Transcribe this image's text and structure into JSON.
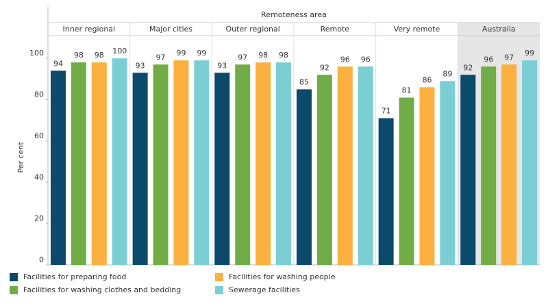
{
  "chart_data": {
    "type": "bar",
    "x_label": "Remoteness area",
    "y_label": "Per cent",
    "categories": [
      "Inner regional",
      "Major cities",
      "Outer regional",
      "Remote",
      "Very remote",
      "Australia"
    ],
    "shaded_category": "Australia",
    "shade_color": "#e6e6e6",
    "series": [
      {
        "name": "Facilities for preparing food",
        "color": "#0b4a6b",
        "values": [
          94,
          93,
          93,
          85,
          71,
          92
        ]
      },
      {
        "name": "Facilities for washing clothes and bedding",
        "color": "#70ad47",
        "values": [
          98,
          97,
          97,
          92,
          81,
          96
        ]
      },
      {
        "name": "Facilities for washing people",
        "color": "#fbb040",
        "values": [
          98,
          99,
          98,
          96,
          86,
          97
        ]
      },
      {
        "name": "Sewerage facilities",
        "color": "#7bcfd4",
        "values": [
          100,
          99,
          98,
          96,
          89,
          99
        ]
      }
    ],
    "ylim": [
      0,
      111
    ],
    "yticks": [
      0,
      20,
      40,
      60,
      80,
      100
    ]
  }
}
